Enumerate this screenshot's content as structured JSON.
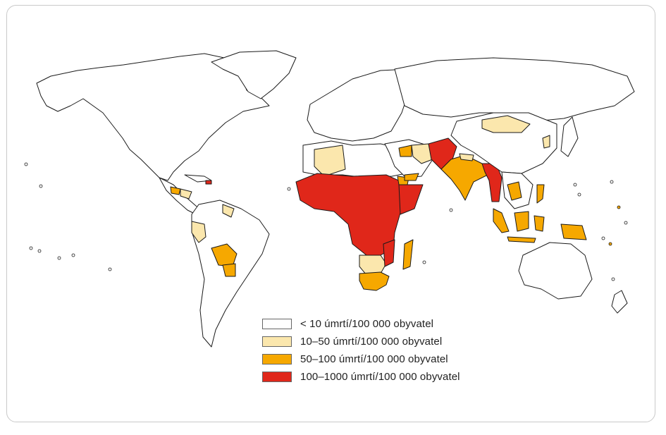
{
  "colors": {
    "level1": "#ffffff",
    "level2": "#fbe7ad",
    "level3": "#f6a800",
    "level4": "#e0271a",
    "outline": "#1a1a1a"
  },
  "legend": {
    "items": [
      {
        "label": "< 10 úmrtí/100 000 obyvatel",
        "level": "level1"
      },
      {
        "label": "10–50 úmrtí/100 000 obyvatel",
        "level": "level2"
      },
      {
        "label": "50–100 úmrtí/100 000 obyvatel",
        "level": "level3"
      },
      {
        "label": "100–1000 úmrtí/100 000 obyvatel",
        "level": "level4"
      }
    ]
  }
}
